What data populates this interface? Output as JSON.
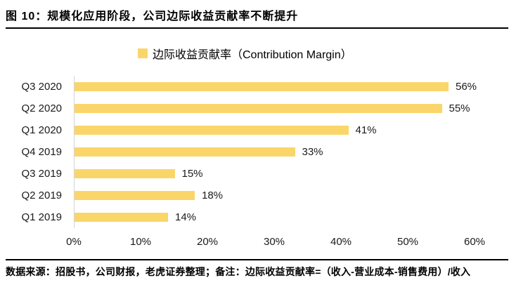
{
  "title": "图 10：规模化应用阶段，公司边际收益贡献率不断提升",
  "legend": {
    "label": "边际收益贡献率（Contribution Margin）",
    "swatch_icon": "yellow-square-icon"
  },
  "chart_data": {
    "type": "bar",
    "orientation": "horizontal",
    "title": "边际收益贡献率（Contribution Margin）",
    "categories": [
      "Q3 2020",
      "Q2 2020",
      "Q1 2020",
      "Q4 2019",
      "Q3 2019",
      "Q2 2019",
      "Q1 2019"
    ],
    "values": [
      56,
      55,
      41,
      33,
      15,
      18,
      14
    ],
    "value_labels": [
      "56%",
      "55%",
      "41%",
      "33%",
      "15%",
      "18%",
      "14%"
    ],
    "x_ticks": [
      "0%",
      "10%",
      "20%",
      "30%",
      "40%",
      "50%",
      "60%"
    ],
    "x_tick_values": [
      0,
      10,
      20,
      30,
      40,
      50,
      60
    ],
    "xlim": [
      0,
      61
    ],
    "xlabel": "",
    "ylabel": "",
    "grid": false,
    "legend_position": "top-center"
  },
  "footer": {
    "note": "数据来源：招股书，公司财报，老虎证券整理；备注：边际收益贡献率=（收入-营业成本-销售费用）/收入"
  },
  "colors": {
    "bar": "#FAD66A",
    "text": "#1a1a1a",
    "rule": "#000000",
    "axis_line": "#d4d4d4"
  }
}
